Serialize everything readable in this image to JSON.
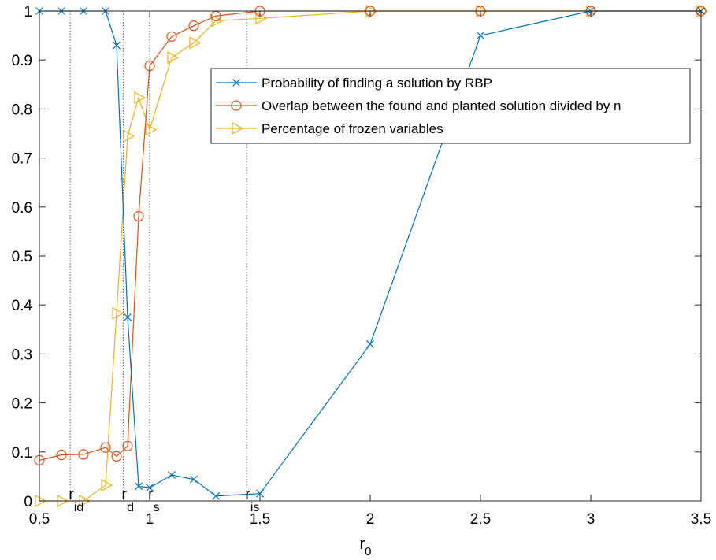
{
  "chart_data": {
    "type": "line",
    "title": "",
    "xlabel": "r",
    "xlabel_sub": "0",
    "ylabel": "",
    "xlim": [
      0.5,
      3.5
    ],
    "ylim": [
      0,
      1
    ],
    "xticks": [
      "0.5",
      "1",
      "1.5",
      "2",
      "2.5",
      "3",
      "3.5"
    ],
    "yticks": [
      "0",
      "0.1",
      "0.2",
      "0.3",
      "0.4",
      "0.5",
      "0.6",
      "0.7",
      "0.8",
      "0.9",
      "1"
    ],
    "legend_position": "upper-right",
    "grid": false,
    "vertical_lines": [
      {
        "x": 0.64,
        "label": "r",
        "sub": "id"
      },
      {
        "x": 0.88,
        "label": "r",
        "sub": "d"
      },
      {
        "x": 1.0,
        "label": "r",
        "sub": "s"
      },
      {
        "x": 1.44,
        "label": "r",
        "sub": "is"
      }
    ],
    "series": [
      {
        "name": "Probability of finding a solution by RBP",
        "color": "#0072bd",
        "marker": "x",
        "x": [
          0.5,
          0.6,
          0.7,
          0.8,
          0.85,
          0.9,
          0.95,
          1.0,
          1.1,
          1.2,
          1.3,
          1.5,
          2.0,
          2.5,
          3.0,
          3.5
        ],
        "y": [
          1.0,
          1.0,
          1.0,
          1.0,
          0.93,
          0.375,
          0.03,
          0.027,
          0.053,
          0.044,
          0.01,
          0.015,
          0.32,
          0.95,
          1.0,
          1.0
        ]
      },
      {
        "name": "Overlap between the found and planted solution divided by n",
        "color": "#d95319",
        "marker": "o",
        "x": [
          0.5,
          0.6,
          0.7,
          0.8,
          0.85,
          0.9,
          0.95,
          1.0,
          1.1,
          1.2,
          1.3,
          1.5,
          2.0,
          2.5,
          3.0,
          3.5
        ],
        "y": [
          0.083,
          0.094,
          0.095,
          0.109,
          0.091,
          0.112,
          0.581,
          0.888,
          0.948,
          0.97,
          0.99,
          1.0,
          1.0,
          1.0,
          1.0,
          1.0
        ]
      },
      {
        "name": "Percentage of frozen variables",
        "color": "#edb120",
        "marker": "triangle-right",
        "x": [
          0.5,
          0.6,
          0.7,
          0.8,
          0.85,
          0.9,
          0.95,
          1.0,
          1.1,
          1.2,
          1.3,
          1.5,
          2.0,
          2.5,
          3.0,
          3.5
        ],
        "y": [
          0.0,
          0.0,
          0.0,
          0.032,
          0.383,
          0.745,
          0.823,
          0.758,
          0.905,
          0.935,
          0.98,
          0.985,
          1.0,
          1.0,
          1.0,
          1.0
        ]
      }
    ]
  }
}
